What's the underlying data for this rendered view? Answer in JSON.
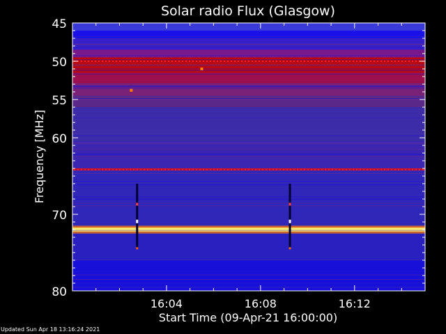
{
  "chart_data": {
    "type": "heatmap",
    "title": "Solar radio Flux (Glasgow)",
    "xlabel": "Start Time (09-Apr-21 16:00:00)",
    "ylabel": "Frequency [MHz]",
    "x_unit": "minutes after 16:00:00",
    "xlim": [
      0,
      15
    ],
    "ylim": [
      45,
      80
    ],
    "y_inverted": true,
    "yticks": [
      45,
      50,
      55,
      60,
      70,
      80
    ],
    "ytick_labels": [
      "45",
      "50",
      "55",
      "60",
      "70",
      "80"
    ],
    "xticks": [
      4,
      8,
      12
    ],
    "xtick_labels": [
      "16:04",
      "16:08",
      "16:12"
    ],
    "background_colors": [
      "#0000c8",
      "#5a30b4",
      "#b40000",
      "#ffff60"
    ],
    "bands": [
      {
        "from": 45.0,
        "to": 46.0,
        "color": "#3a3ad8"
      },
      {
        "from": 46.0,
        "to": 47.0,
        "color": "#1a10e8"
      },
      {
        "from": 47.0,
        "to": 48.5,
        "color": "#3820c8"
      },
      {
        "from": 48.5,
        "to": 49.5,
        "color": "#7a1888"
      },
      {
        "from": 49.5,
        "to": 51.5,
        "color": "#b80a10"
      },
      {
        "from": 51.5,
        "to": 53.0,
        "color": "#9c1050"
      },
      {
        "from": 53.0,
        "to": 54.5,
        "color": "#7a2278"
      },
      {
        "from": 54.5,
        "to": 56.0,
        "color": "#5a2888"
      },
      {
        "from": 56.0,
        "to": 60.5,
        "color": "#3c2ca8"
      },
      {
        "from": 60.5,
        "to": 64.0,
        "color": "#3a26b0"
      },
      {
        "from": 64.0,
        "to": 64.3,
        "color": "#e01010"
      },
      {
        "from": 64.3,
        "to": 71.5,
        "color": "#3026b8"
      },
      {
        "from": 71.5,
        "to": 71.75,
        "color": "#ff8000"
      },
      {
        "from": 71.75,
        "to": 72.25,
        "color": "#fff070"
      },
      {
        "from": 72.25,
        "to": 72.5,
        "color": "#ff8000"
      },
      {
        "from": 72.5,
        "to": 76.0,
        "color": "#2a20c0"
      },
      {
        "from": 76.0,
        "to": 80.0,
        "color": "#1810d8"
      }
    ],
    "events": [
      {
        "time_min": 2.75,
        "freq_from": 66.0,
        "freq_to": 74.5
      },
      {
        "time_min": 9.25,
        "freq_from": 66.0,
        "freq_to": 74.5
      }
    ],
    "spots": [
      {
        "time_min": 5.5,
        "freq": 51.0
      },
      {
        "time_min": 2.5,
        "freq": 53.8
      }
    ]
  },
  "footer": {
    "updated": "Updated Sun Apr 18 13:16:24 2021"
  }
}
